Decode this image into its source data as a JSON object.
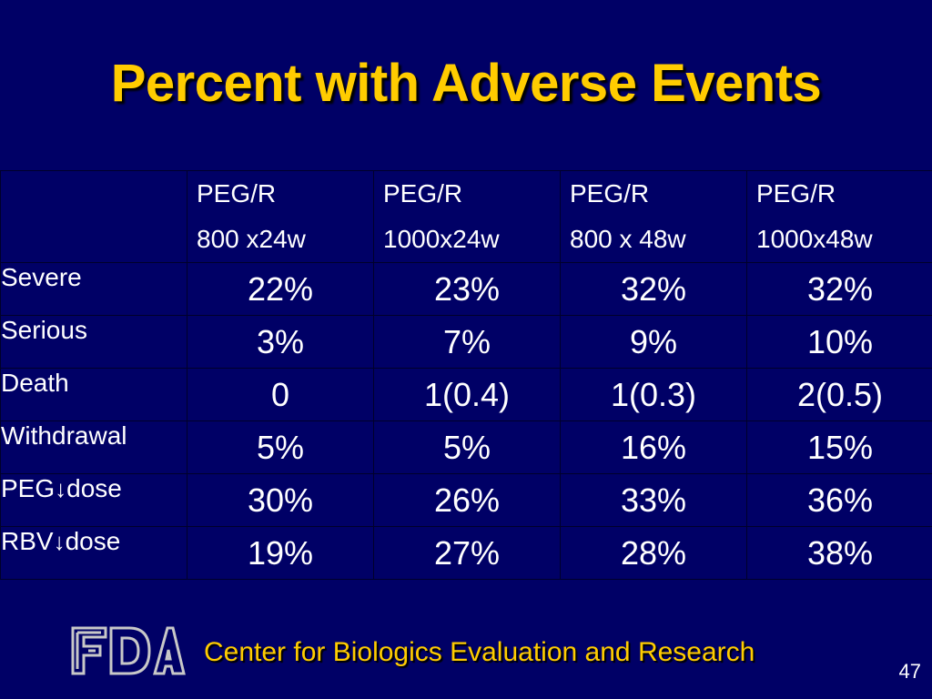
{
  "slide": {
    "title": "Percent with Adverse Events",
    "footer": "Center for Biologics Evaluation and Research",
    "page_number": "47",
    "logo_text": "FDA"
  },
  "table": {
    "columns": [
      {
        "line1": "PEG/R",
        "line2": "800 x24w"
      },
      {
        "line1": "PEG/R",
        "line2": "1000x24w"
      },
      {
        "line1": "PEG/R",
        "line2": "800 x 48w"
      },
      {
        "line1": "PEG/R",
        "line2": "1000x48w"
      }
    ],
    "rows": [
      {
        "label": "Severe",
        "values": [
          "22%",
          "23%",
          "32%",
          "32%"
        ]
      },
      {
        "label": "Serious",
        "values": [
          "3%",
          "7%",
          "9%",
          "10%"
        ]
      },
      {
        "label": "Death",
        "values": [
          "0",
          "1(0.4)",
          "1(0.3)",
          "2(0.5)"
        ]
      },
      {
        "label": "Withdrawal",
        "values": [
          "5%",
          "5%",
          "16%",
          "15%"
        ]
      },
      {
        "label_pre": "PEG",
        "label_arrow": "↓",
        "label_post": "dose",
        "values": [
          "30%",
          "26%",
          "33%",
          "36%"
        ]
      },
      {
        "label_pre": "RBV",
        "label_arrow": "↓",
        "label_post": "dose",
        "values": [
          "19%",
          "27%",
          "28%",
          "38%"
        ]
      }
    ]
  }
}
